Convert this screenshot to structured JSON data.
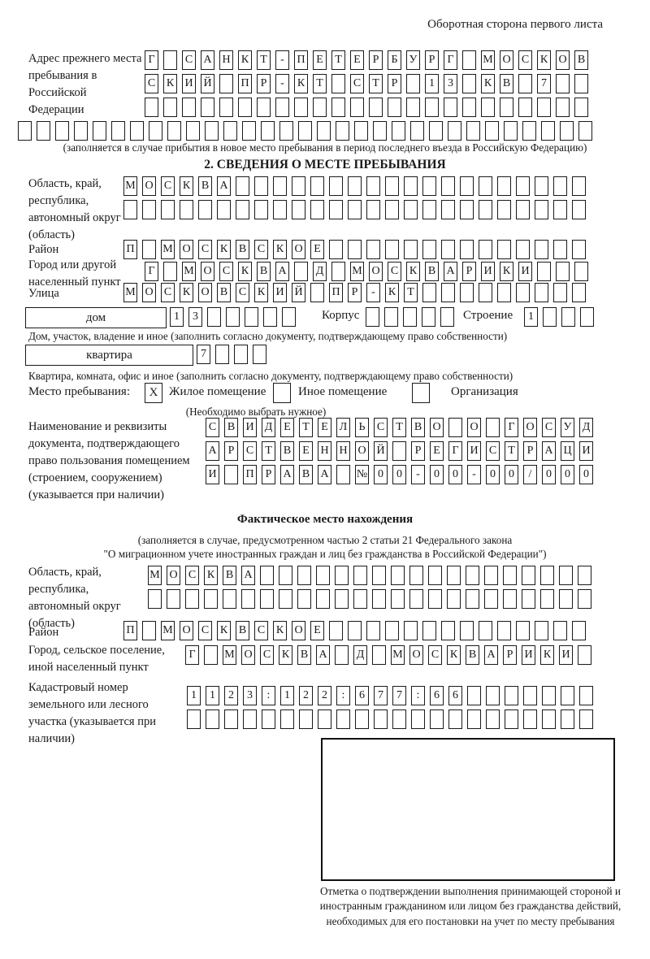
{
  "ink": "#1a1a1a",
  "header_note": "Оборотная сторона первого листа",
  "prev_address": {
    "label": "Адрес прежнего места пребывания в Российской Федерации",
    "row1": "Г САНКТ-ПЕТЕРБУРГ МОСКОВ",
    "row2": "СКИЙ ПР-КТ СТР 13 КВ 7",
    "row3": "",
    "row4": "",
    "note": "(заполняется в случае прибытия в новое место пребывания в период последнего въезда в Российскую Федерацию)"
  },
  "section2": {
    "title": "2. СВЕДЕНИЯ О МЕСТЕ ПРЕБЫВАНИЯ",
    "region": {
      "label": "Область, край, республика, автономный округ (область)",
      "row1": "МОСКВА",
      "row2": ""
    },
    "district": {
      "label": "Район",
      "row": "П МОСКВСКОЕ"
    },
    "city": {
      "label": "Город или другой населенный пункт",
      "row": "Г МОСКВА Д МОСКВАРИКИ"
    },
    "street": {
      "label": "Улица",
      "row": "МОСКОВСКИЙ ПР-КТ"
    },
    "house": {
      "box_label": "дом",
      "cells": "13",
      "korpus_label": "Корпус",
      "korpus_cells": "",
      "stroenie_label": "Строение",
      "stroenie_cells": "1",
      "note": "Дом, участок, владение и иное (заполнить согласно документу, подтверждающему право собственности)"
    },
    "apartment": {
      "box_label": "квартира",
      "cells": "7",
      "note": "Квартира, комната, офис и иное (заполнить согласно документу, подтверждающему право собственности)"
    },
    "stay_type": {
      "label": "Место пребывания:",
      "mark": "X",
      "option1": "Жилое помещение",
      "option2": "Иное помещение",
      "option3": "Организация",
      "note": "(Необходимо выбрать нужное)"
    },
    "document": {
      "label": "Наименование и реквизиты документа, подтверждающего право пользования помещением (строением, сооружением) (указывается при наличии)",
      "row1": "СВИДЕТЕЛЬСТВО О ГОСУД",
      "row2": "АРСТВЕННОЙ РЕГИСТРАЦИ",
      "row3": "И ПРАВА №00-00-00/000"
    }
  },
  "actual_location": {
    "title": "Фактическое место нахождения",
    "note_line1": "(заполняется в случае, предусмотренном частью 2 статьи 21 Федерального закона",
    "note_line2": "\"О миграционном учете иностранных граждан и лиц без гражданства в Российской Федерации\")",
    "region": {
      "label": "Область, край, республика, автономный округ (область)",
      "row1": "МОСКВА",
      "row2": ""
    },
    "district": {
      "label": "Район",
      "row": "П МОСКВСКОЕ"
    },
    "city": {
      "label": "Город, сельское поселение, иной населенный пункт",
      "row": "Г МОСКВА Д МОСКВАРИКИ"
    },
    "cadastral": {
      "label": "Кадастровый номер земельного или лесного участка (указывается при наличии)",
      "row1": "1123:122:677:66",
      "row2": ""
    }
  },
  "confirmation": {
    "caption": "Отметка о подтверждении выполнения принимающей стороной и иностранным гражданином или лицом без гражданства действий, необходимых для его постановки на учет по месту пребывания"
  }
}
